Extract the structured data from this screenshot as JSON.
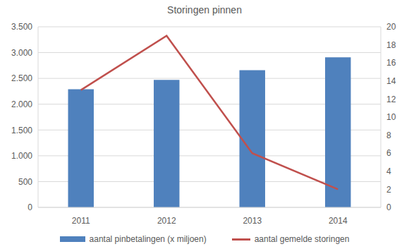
{
  "chart_data": {
    "type": "bar",
    "title": "Storingen pinnen",
    "categories": [
      "2011",
      "2012",
      "2013",
      "2014"
    ],
    "series": [
      {
        "name": "aantal pinbetalingen (x miljoen)",
        "type": "bar",
        "color": "#4f81bd",
        "values": [
          2290,
          2470,
          2660,
          2910
        ]
      },
      {
        "name": "aantal gemelde storingen",
        "type": "line",
        "color": "#c0504d",
        "axis": "y2",
        "values": [
          13,
          19,
          6,
          2
        ]
      }
    ],
    "ylim": [
      0,
      3500
    ],
    "yticks": [
      0,
      500,
      {
        "value": 1000,
        "label": "1.000"
      },
      {
        "value": 1500,
        "label": "1.500"
      },
      {
        "value": 2000,
        "label": "2.000"
      },
      {
        "value": 2500,
        "label": "2.500"
      },
      {
        "value": 3000,
        "label": "3.000"
      },
      {
        "value": 3500,
        "label": "3.500"
      }
    ],
    "y2lim": [
      0,
      20
    ],
    "y2ticks": [
      0,
      2,
      4,
      6,
      8,
      10,
      12,
      14,
      16,
      18,
      20
    ],
    "grid": true,
    "legend": "bottom"
  }
}
